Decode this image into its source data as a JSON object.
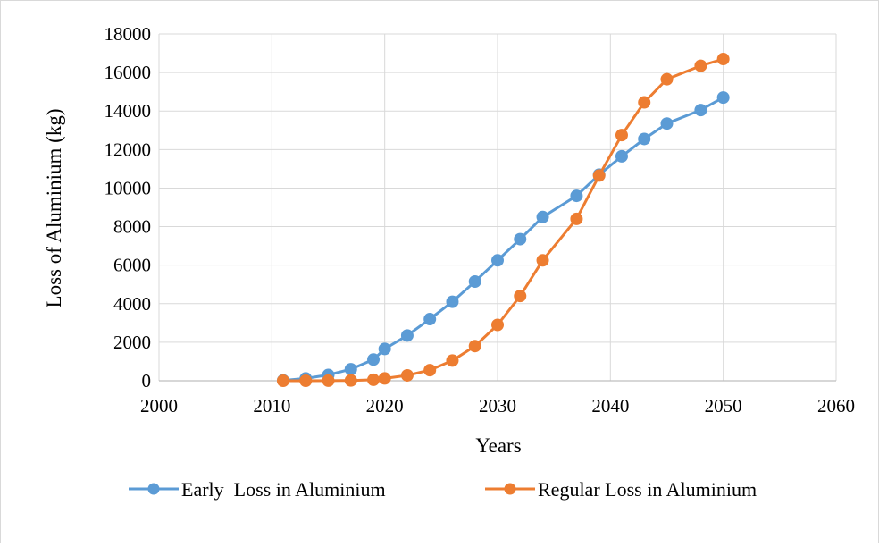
{
  "chart_data": {
    "type": "line",
    "title": "",
    "xlabel": "Years",
    "ylabel": "Loss of Aluminium (kg)",
    "xlim": [
      2000,
      2060
    ],
    "ylim": [
      0,
      18000
    ],
    "x_ticks": [
      2000,
      2010,
      2020,
      2030,
      2040,
      2050,
      2060
    ],
    "y_ticks": [
      0,
      2000,
      4000,
      6000,
      8000,
      10000,
      12000,
      14000,
      16000,
      18000
    ],
    "grid": true,
    "legend_position": "bottom",
    "series": [
      {
        "name": "Early  Loss in Aluminium",
        "color": "#5b9bd5",
        "x": [
          2011,
          2013,
          2015,
          2017,
          2019,
          2020,
          2022,
          2024,
          2026,
          2028,
          2030,
          2032,
          2034,
          2037,
          2039,
          2041,
          2043,
          2045,
          2048,
          2050
        ],
        "y": [
          20,
          120,
          300,
          600,
          1100,
          1650,
          2350,
          3200,
          4100,
          5150,
          6250,
          7350,
          8500,
          9600,
          10700,
          11650,
          12550,
          13350,
          14050,
          14700
        ]
      },
      {
        "name": "Regular Loss in Aluminium",
        "color": "#ed7d31",
        "x": [
          2011,
          2013,
          2015,
          2017,
          2019,
          2020,
          2022,
          2024,
          2026,
          2028,
          2030,
          2032,
          2034,
          2037,
          2039,
          2041,
          2043,
          2045,
          2048,
          2050
        ],
        "y": [
          0,
          0,
          5,
          15,
          50,
          120,
          280,
          550,
          1050,
          1800,
          2900,
          4400,
          6250,
          8400,
          10650,
          12750,
          14450,
          15650,
          16350,
          16700
        ]
      }
    ]
  }
}
